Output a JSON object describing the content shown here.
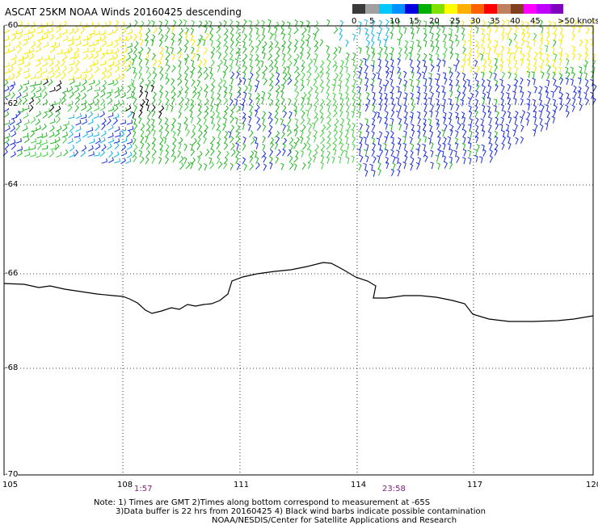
{
  "title": "ASCAT 25KM NOAA Winds 20160425 descending",
  "legend": {
    "colors": [
      "#3a3a3a",
      "#a0a0a0",
      "#00c8ff",
      "#0090ff",
      "#0000e0",
      "#00b000",
      "#80e000",
      "#ffff00",
      "#ffb000",
      "#ff6000",
      "#ff0000",
      "#c08060",
      "#804020",
      "#ff00ff",
      "#c000ff",
      "#8000c0"
    ],
    "labels": [
      "0",
      "5",
      "10",
      "15",
      "20",
      "25",
      "30",
      "35",
      "40",
      "45",
      ">50 knots"
    ]
  },
  "lat_labels": [
    "-60",
    "-62",
    "-64",
    "-66",
    "-68",
    "-70"
  ],
  "lon_labels": [
    "105",
    "108",
    "111",
    "114",
    "117",
    "120"
  ],
  "time_labels": [
    "1:57",
    "23:58"
  ],
  "notes": [
    "Note: 1) Times are GMT 2)Times along bottom correspond to measurement at -65S",
    "3)Data buffer is 22 hrs from 20160425 4) Black wind barbs indicate possible contamination",
    "NOAA/NESDIS/Center for Satellite Applications and Research"
  ],
  "wind_colors": {
    "yellow": "#f4e800",
    "green": "#22b422",
    "lightgreen": "#44cc44",
    "blue": "#1a2ce0",
    "cyan": "#14b4e0",
    "black": "#000000"
  }
}
